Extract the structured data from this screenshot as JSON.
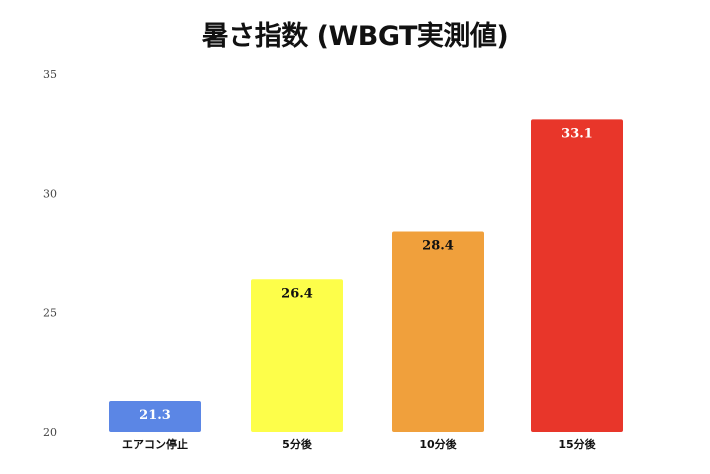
{
  "chart_data": {
    "type": "bar",
    "title": "暑さ指数 (WBGT実測値)",
    "categories": [
      "エアコン停止",
      "5分後",
      "10分後",
      "15分後"
    ],
    "values": [
      21.3,
      26.4,
      28.4,
      33.1
    ],
    "colors": [
      "#5b86e5",
      "#fdfe4a",
      "#f0a03c",
      "#e8362a"
    ],
    "label_colors": [
      "#ffffff",
      "#111111",
      "#111111",
      "#ffffff"
    ],
    "ylim": [
      20,
      35
    ],
    "yticks": [
      20,
      25,
      30,
      35
    ],
    "grid": false,
    "legend": "none"
  }
}
